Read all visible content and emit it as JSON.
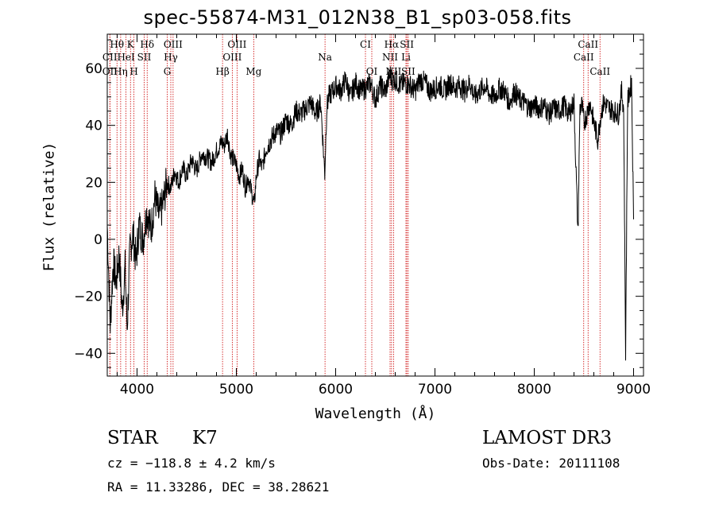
{
  "chart_data": {
    "type": "line",
    "title": "spec-55874-M31_012N38_B1_sp03-058.fits",
    "xlabel": "Wavelength (Å)",
    "ylabel": "Flux (relative)",
    "xlim": [
      3700,
      9100
    ],
    "ylim": [
      -48,
      72
    ],
    "xticks": [
      4000,
      5000,
      6000,
      7000,
      8000,
      9000
    ],
    "yticks": [
      -40,
      -20,
      0,
      20,
      40,
      60
    ],
    "xtick_labels": [
      "4000",
      "5000",
      "6000",
      "7000",
      "8000",
      "9000"
    ],
    "ytick_labels": [
      "−40",
      "−20",
      "0",
      "20",
      "40",
      "60"
    ],
    "series": [
      {
        "name": "spectrum",
        "x": [
          3700,
          3730,
          3760,
          3790,
          3820,
          3850,
          3880,
          3900,
          3930,
          3960,
          3990,
          4020,
          4060,
          4100,
          4140,
          4180,
          4220,
          4260,
          4300,
          4340,
          4380,
          4420,
          4460,
          4500,
          4550,
          4600,
          4650,
          4700,
          4750,
          4800,
          4850,
          4880,
          4910,
          4940,
          4970,
          5000,
          5030,
          5060,
          5090,
          5120,
          5150,
          5180,
          5200,
          5230,
          5260,
          5300,
          5350,
          5400,
          5450,
          5500,
          5550,
          5600,
          5650,
          5700,
          5750,
          5800,
          5850,
          5890,
          5910,
          5930,
          5970,
          6010,
          6050,
          6100,
          6150,
          6200,
          6250,
          6300,
          6350,
          6400,
          6450,
          6500,
          6550,
          6563,
          6600,
          6650,
          6700,
          6750,
          6800,
          6850,
          6900,
          6950,
          7000,
          7050,
          7100,
          7150,
          7200,
          7250,
          7300,
          7350,
          7400,
          7450,
          7500,
          7550,
          7600,
          7650,
          7700,
          7750,
          7800,
          7850,
          7900,
          7950,
          8000,
          8050,
          8100,
          8150,
          8200,
          8250,
          8300,
          8350,
          8400,
          8440,
          8460,
          8480,
          8500,
          8530,
          8560,
          8600,
          8640,
          8670,
          8700,
          8750,
          8800,
          8850,
          8880,
          8900,
          8920,
          8940,
          8960,
          8980,
          9000
        ],
        "y": [
          5,
          -30,
          -8,
          -15,
          -5,
          -25,
          -10,
          -31,
          -3,
          2,
          -8,
          5,
          0,
          10,
          3,
          15,
          8,
          12,
          20,
          18,
          24,
          20,
          25,
          22,
          28,
          24,
          30,
          29,
          27,
          31,
          34,
          33,
          37,
          30,
          28,
          26,
          22,
          25,
          18,
          22,
          17,
          12,
          22,
          28,
          25,
          32,
          35,
          38,
          37,
          42,
          40,
          45,
          44,
          46,
          48,
          44,
          48,
          23,
          46,
          50,
          52,
          54,
          52,
          56,
          50,
          55,
          52,
          53,
          55,
          49,
          54,
          52,
          58,
          56,
          56,
          54,
          55,
          54,
          52,
          56,
          55,
          52,
          53,
          54,
          52,
          55,
          53,
          54,
          52,
          55,
          50,
          52,
          54,
          51,
          50,
          53,
          52,
          48,
          52,
          49,
          48,
          46,
          47,
          46,
          47,
          44,
          46,
          45,
          47,
          44,
          48,
          2,
          46,
          47,
          41,
          44,
          48,
          41,
          35,
          44,
          48,
          46,
          45,
          44,
          52,
          46,
          -39,
          48,
          52,
          55,
          7
        ]
      }
    ],
    "line_markers": [
      {
        "name": "Hθ",
        "x": 3798,
        "row": 1
      },
      {
        "name": "K",
        "x": 3934,
        "row": 1
      },
      {
        "name": "Hδ",
        "x": 4102,
        "row": 1
      },
      {
        "name": "OIII",
        "x": 4363,
        "row": 1
      },
      {
        "name": "OIII",
        "x": 5007,
        "row": 1
      },
      {
        "name": "CI",
        "x": 6300,
        "row": 1
      },
      {
        "name": "Hα",
        "x": 6563,
        "row": 1
      },
      {
        "name": "SII",
        "x": 6717,
        "row": 1
      },
      {
        "name": "CaII",
        "x": 8542,
        "row": 1
      },
      {
        "name": "CII",
        "x": 3726,
        "row": 2
      },
      {
        "name": "HeI",
        "x": 3889,
        "row": 2
      },
      {
        "name": "SII",
        "x": 4072,
        "row": 2
      },
      {
        "name": "Hγ",
        "x": 4340,
        "row": 2
      },
      {
        "name": "OIII",
        "x": 4959,
        "row": 2
      },
      {
        "name": "Na",
        "x": 5893,
        "row": 2
      },
      {
        "name": "NII",
        "x": 6548,
        "row": 2
      },
      {
        "name": "Li",
        "x": 6708,
        "row": 2
      },
      {
        "name": "CaII",
        "x": 8498,
        "row": 2
      },
      {
        "name": "OII",
        "x": 3727,
        "row": 3
      },
      {
        "name": "Hη",
        "x": 3835,
        "row": 3
      },
      {
        "name": "H",
        "x": 3969,
        "row": 3
      },
      {
        "name": "G",
        "x": 4304,
        "row": 3
      },
      {
        "name": "Hβ",
        "x": 4861,
        "row": 3
      },
      {
        "name": "Mg",
        "x": 5175,
        "row": 3
      },
      {
        "name": "OI",
        "x": 6364,
        "row": 3
      },
      {
        "name": "NII",
        "x": 6583,
        "row": 3
      },
      {
        "name": "SII",
        "x": 6731,
        "row": 3
      },
      {
        "name": "CaII",
        "x": 8662,
        "row": 3
      }
    ],
    "grid": false,
    "colors": {
      "line": "#000000",
      "marker": "#cc0000",
      "axis": "#000000"
    }
  },
  "footer": {
    "class_label": "STAR",
    "subclass_label": "K7",
    "survey": "LAMOST DR3",
    "redshift": "cz = −118.8 ± 4.2 km/s",
    "obs_date": "Obs-Date: 20111108",
    "coords": "RA =  11.33286, DEC =  38.28621"
  }
}
